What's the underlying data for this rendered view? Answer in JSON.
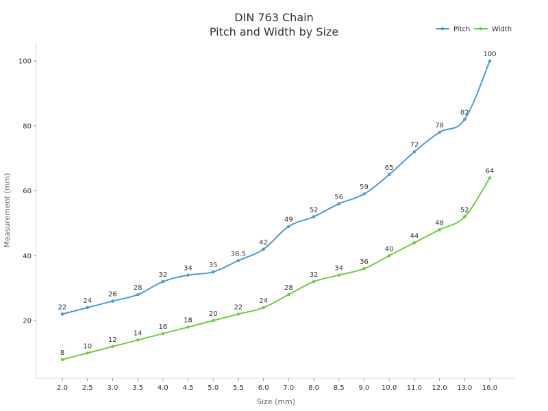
{
  "chart_data": {
    "type": "line",
    "title": "DIN 763 Chain",
    "subtitle": "Pitch and Width by Size",
    "xlabel": "Size (mm)",
    "ylabel": "Measurement (mm)",
    "categories": [
      "2.0",
      "2.5",
      "3.0",
      "3.5",
      "4.0",
      "4.5",
      "5.0",
      "5.5",
      "6.0",
      "7.0",
      "8.0",
      "8.5",
      "9.0",
      "10.0",
      "11.0",
      "12.0",
      "13.0",
      "16.0"
    ],
    "series": [
      {
        "name": "Pitch",
        "color": "#4a9ad9",
        "values": [
          22,
          24,
          26,
          28,
          32,
          34,
          35,
          38.5,
          42,
          49,
          52,
          56,
          59,
          65,
          72,
          78,
          82,
          100
        ]
      },
      {
        "name": "Width",
        "color": "#6fcf3c",
        "values": [
          8,
          10,
          12,
          14,
          16,
          18,
          20,
          22,
          24,
          28,
          32,
          34,
          36,
          40,
          44,
          48,
          52,
          64
        ]
      }
    ],
    "yticks": [
      20,
      40,
      60,
      80,
      100
    ],
    "ylim": [
      0,
      104
    ],
    "grid": false,
    "legend_position": "top-right",
    "data_labels": true
  }
}
